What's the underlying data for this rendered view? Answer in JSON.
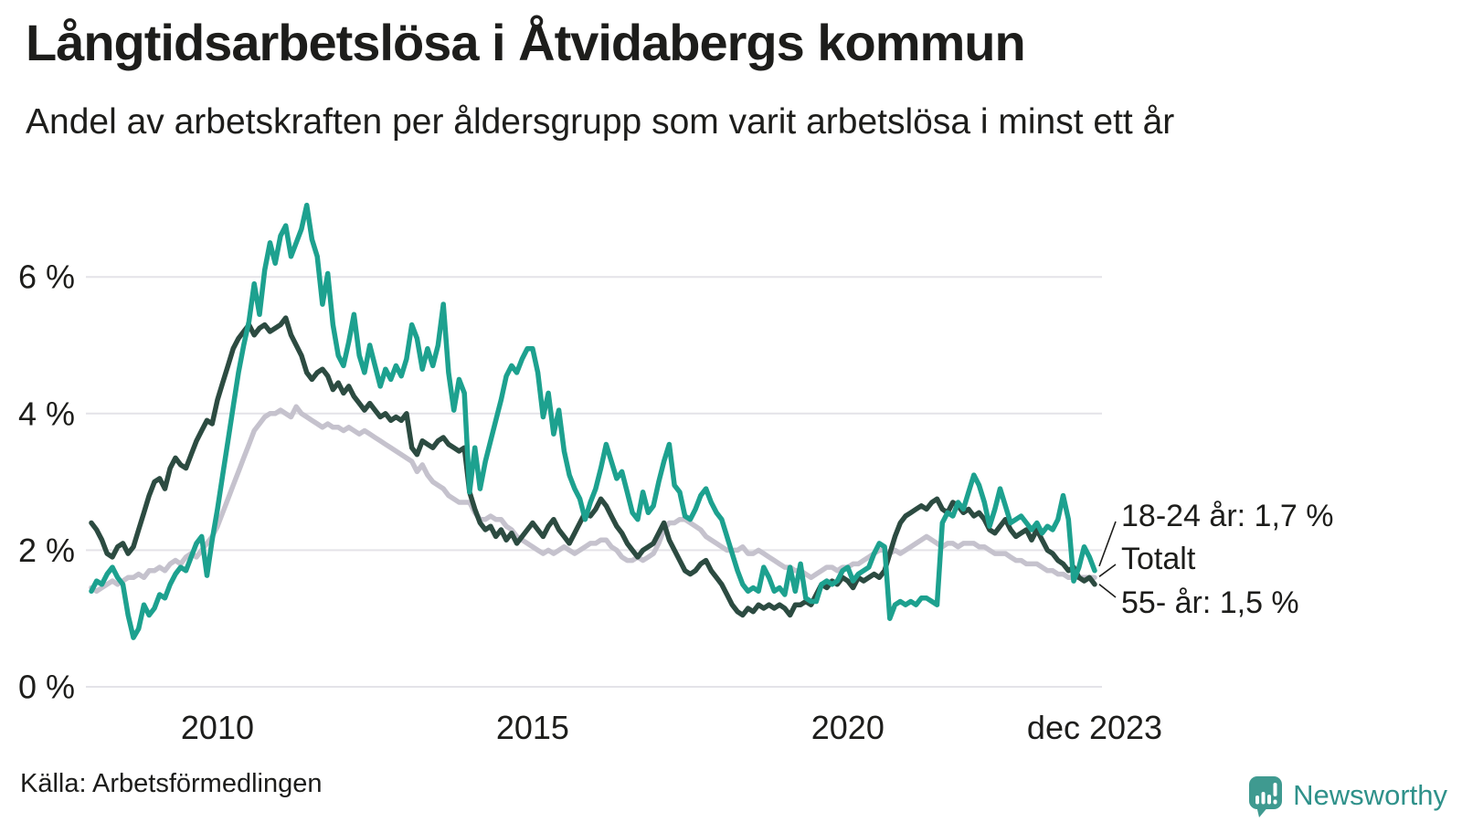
{
  "header": {
    "title": "Långtidsarbetslösa i Åtvidabergs kommun",
    "subtitle": "Andel av arbetskraften per åldersgrupp som varit arbetslösa i minst ett år"
  },
  "footer": {
    "source": "Källa: Arbetsförmedlingen",
    "brand": "Newsworthy"
  },
  "chart_data": {
    "type": "line",
    "unit": "%",
    "x_start": "jan 2008",
    "x_end": "dec 2023",
    "frequency": "monthly",
    "grid": "horizontal",
    "ylim": [
      0,
      7.3
    ],
    "text_color": "#1d1d1b",
    "grid_color": "#e4e3e8",
    "y_ticks": [
      {
        "label": "0 %",
        "value": 0
      },
      {
        "label": "2 %",
        "value": 2
      },
      {
        "label": "4 %",
        "value": 4
      },
      {
        "label": "6 %",
        "value": 6
      }
    ],
    "x_ticks": [
      {
        "label": "2010",
        "month_index": 24
      },
      {
        "label": "2015",
        "month_index": 84
      },
      {
        "label": "2020",
        "month_index": 144
      },
      {
        "label": "dec 2023",
        "month_index": 191
      }
    ],
    "series": [
      {
        "name": "Totalt",
        "color": "#c5c2cd",
        "values": [
          1.45,
          1.4,
          1.45,
          1.5,
          1.55,
          1.5,
          1.55,
          1.6,
          1.6,
          1.65,
          1.6,
          1.7,
          1.7,
          1.75,
          1.7,
          1.8,
          1.85,
          1.8,
          1.9,
          1.95,
          1.9,
          2.0,
          2.1,
          2.2,
          2.35,
          2.55,
          2.75,
          2.95,
          3.15,
          3.35,
          3.55,
          3.75,
          3.85,
          3.95,
          4.0,
          4.0,
          4.05,
          4.0,
          3.95,
          4.1,
          4.0,
          3.95,
          3.9,
          3.85,
          3.8,
          3.85,
          3.8,
          3.8,
          3.75,
          3.8,
          3.75,
          3.7,
          3.75,
          3.7,
          3.65,
          3.6,
          3.55,
          3.5,
          3.45,
          3.4,
          3.35,
          3.3,
          3.15,
          3.25,
          3.1,
          3.0,
          2.95,
          2.9,
          2.8,
          2.75,
          2.7,
          2.7,
          2.7,
          2.55,
          2.45,
          2.45,
          2.5,
          2.45,
          2.45,
          2.35,
          2.3,
          2.2,
          2.15,
          2.1,
          2.05,
          2.0,
          1.95,
          2.0,
          1.95,
          2.0,
          2.05,
          2.0,
          1.95,
          2.0,
          2.05,
          2.1,
          2.1,
          2.15,
          2.15,
          2.05,
          2.0,
          1.9,
          1.85,
          1.85,
          1.9,
          1.85,
          1.9,
          1.95,
          2.1,
          2.3,
          2.4,
          2.4,
          2.45,
          2.45,
          2.4,
          2.35,
          2.3,
          2.2,
          2.15,
          2.1,
          2.05,
          2.0,
          2.0,
          2.0,
          2.05,
          1.95,
          1.95,
          2.0,
          1.95,
          1.9,
          1.85,
          1.8,
          1.75,
          1.75,
          1.7,
          1.7,
          1.65,
          1.6,
          1.65,
          1.7,
          1.75,
          1.75,
          1.7,
          1.75,
          1.75,
          1.8,
          1.8,
          1.85,
          1.9,
          1.95,
          2.0,
          2.0,
          1.95,
          2.0,
          1.95,
          2.0,
          2.05,
          2.1,
          2.15,
          2.2,
          2.15,
          2.1,
          2.05,
          2.1,
          2.1,
          2.05,
          2.1,
          2.1,
          2.1,
          2.05,
          2.05,
          2.0,
          1.95,
          1.95,
          1.95,
          1.9,
          1.85,
          1.85,
          1.8,
          1.8,
          1.8,
          1.75,
          1.7,
          1.7,
          1.65,
          1.65,
          1.6,
          1.6,
          1.6,
          1.6,
          1.6,
          1.6
        ]
      },
      {
        "name": "55- år",
        "color": "#2c4b41",
        "values": [
          2.4,
          2.3,
          2.15,
          1.95,
          1.9,
          2.05,
          2.1,
          1.95,
          2.05,
          2.3,
          2.55,
          2.8,
          3.0,
          3.05,
          2.9,
          3.2,
          3.35,
          3.25,
          3.2,
          3.4,
          3.6,
          3.75,
          3.9,
          3.85,
          4.2,
          4.45,
          4.7,
          4.95,
          5.1,
          5.2,
          5.3,
          5.15,
          5.25,
          5.3,
          5.2,
          5.25,
          5.3,
          5.4,
          5.15,
          5.0,
          4.85,
          4.6,
          4.5,
          4.6,
          4.65,
          4.55,
          4.35,
          4.45,
          4.3,
          4.4,
          4.25,
          4.15,
          4.05,
          4.15,
          4.05,
          3.95,
          4.0,
          3.9,
          3.95,
          3.9,
          4.0,
          3.5,
          3.4,
          3.6,
          3.55,
          3.5,
          3.6,
          3.65,
          3.55,
          3.5,
          3.45,
          3.5,
          2.85,
          2.6,
          2.4,
          2.3,
          2.35,
          2.2,
          2.3,
          2.15,
          2.25,
          2.1,
          2.2,
          2.3,
          2.4,
          2.3,
          2.2,
          2.35,
          2.45,
          2.3,
          2.2,
          2.1,
          2.25,
          2.4,
          2.55,
          2.5,
          2.6,
          2.75,
          2.65,
          2.5,
          2.35,
          2.25,
          2.1,
          2.0,
          1.9,
          2.0,
          2.05,
          2.1,
          2.25,
          2.4,
          2.15,
          2.0,
          1.85,
          1.7,
          1.65,
          1.7,
          1.8,
          1.85,
          1.7,
          1.6,
          1.5,
          1.35,
          1.2,
          1.1,
          1.05,
          1.15,
          1.1,
          1.2,
          1.15,
          1.2,
          1.15,
          1.2,
          1.15,
          1.05,
          1.2,
          1.2,
          1.25,
          1.2,
          1.35,
          1.5,
          1.45,
          1.55,
          1.5,
          1.6,
          1.55,
          1.45,
          1.6,
          1.55,
          1.6,
          1.65,
          1.6,
          1.7,
          1.95,
          2.2,
          2.4,
          2.5,
          2.55,
          2.6,
          2.65,
          2.6,
          2.7,
          2.75,
          2.6,
          2.55,
          2.7,
          2.65,
          2.55,
          2.6,
          2.5,
          2.55,
          2.45,
          2.3,
          2.25,
          2.35,
          2.45,
          2.3,
          2.2,
          2.25,
          2.3,
          2.15,
          2.3,
          2.15,
          2.0,
          1.95,
          1.85,
          1.8,
          1.7,
          1.75,
          1.6,
          1.55,
          1.6,
          1.5
        ]
      },
      {
        "name": "18-24 år",
        "color": "#1da18f",
        "values": [
          1.4,
          1.55,
          1.5,
          1.65,
          1.75,
          1.6,
          1.5,
          1.05,
          0.72,
          0.85,
          1.2,
          1.05,
          1.15,
          1.35,
          1.3,
          1.5,
          1.65,
          1.75,
          1.7,
          1.9,
          2.1,
          2.2,
          1.63,
          2.15,
          2.6,
          3.1,
          3.6,
          4.1,
          4.6,
          5.0,
          5.35,
          5.9,
          5.45,
          6.1,
          6.5,
          6.2,
          6.6,
          6.75,
          6.3,
          6.5,
          6.7,
          7.05,
          6.55,
          6.3,
          5.6,
          6.05,
          5.3,
          4.85,
          4.7,
          5.05,
          5.45,
          4.85,
          4.6,
          5.0,
          4.7,
          4.4,
          4.65,
          4.5,
          4.7,
          4.55,
          4.8,
          5.3,
          5.1,
          4.65,
          4.95,
          4.7,
          5.0,
          5.6,
          4.6,
          4.05,
          4.5,
          4.3,
          2.85,
          3.5,
          2.9,
          3.3,
          3.6,
          3.9,
          4.2,
          4.55,
          4.7,
          4.6,
          4.8,
          4.95,
          4.95,
          4.6,
          3.95,
          4.3,
          3.7,
          4.05,
          3.45,
          3.1,
          2.9,
          2.75,
          2.45,
          2.7,
          2.9,
          3.2,
          3.55,
          3.3,
          3.05,
          3.15,
          2.85,
          2.55,
          2.45,
          2.85,
          2.55,
          2.65,
          3.0,
          3.3,
          3.55,
          2.95,
          2.85,
          2.5,
          2.45,
          2.6,
          2.8,
          2.9,
          2.7,
          2.55,
          2.45,
          2.2,
          1.95,
          1.7,
          1.5,
          1.4,
          1.45,
          1.4,
          1.75,
          1.6,
          1.4,
          1.45,
          1.35,
          1.75,
          1.4,
          1.8,
          1.3,
          1.25,
          1.25,
          1.5,
          1.55,
          1.5,
          1.55,
          1.7,
          1.75,
          1.55,
          1.65,
          1.7,
          1.75,
          1.95,
          2.1,
          2.05,
          1.0,
          1.2,
          1.25,
          1.2,
          1.25,
          1.2,
          1.3,
          1.3,
          1.25,
          1.2,
          2.4,
          2.55,
          2.5,
          2.7,
          2.6,
          2.85,
          3.1,
          2.95,
          2.7,
          2.35,
          2.6,
          2.9,
          2.65,
          2.4,
          2.45,
          2.5,
          2.4,
          2.3,
          2.4,
          2.25,
          2.35,
          2.3,
          2.45,
          2.8,
          2.45,
          1.55,
          1.75,
          2.05,
          1.9,
          1.7
        ]
      }
    ],
    "annotations": [
      {
        "text": "18-24 år: 1,7 %",
        "series": "18-24 år",
        "end_value": 1.7
      },
      {
        "text": "Totalt",
        "series": "Totalt",
        "end_value": 1.6
      },
      {
        "text": "55- år: 1,5 %",
        "series": "55- år",
        "end_value": 1.5
      }
    ]
  }
}
